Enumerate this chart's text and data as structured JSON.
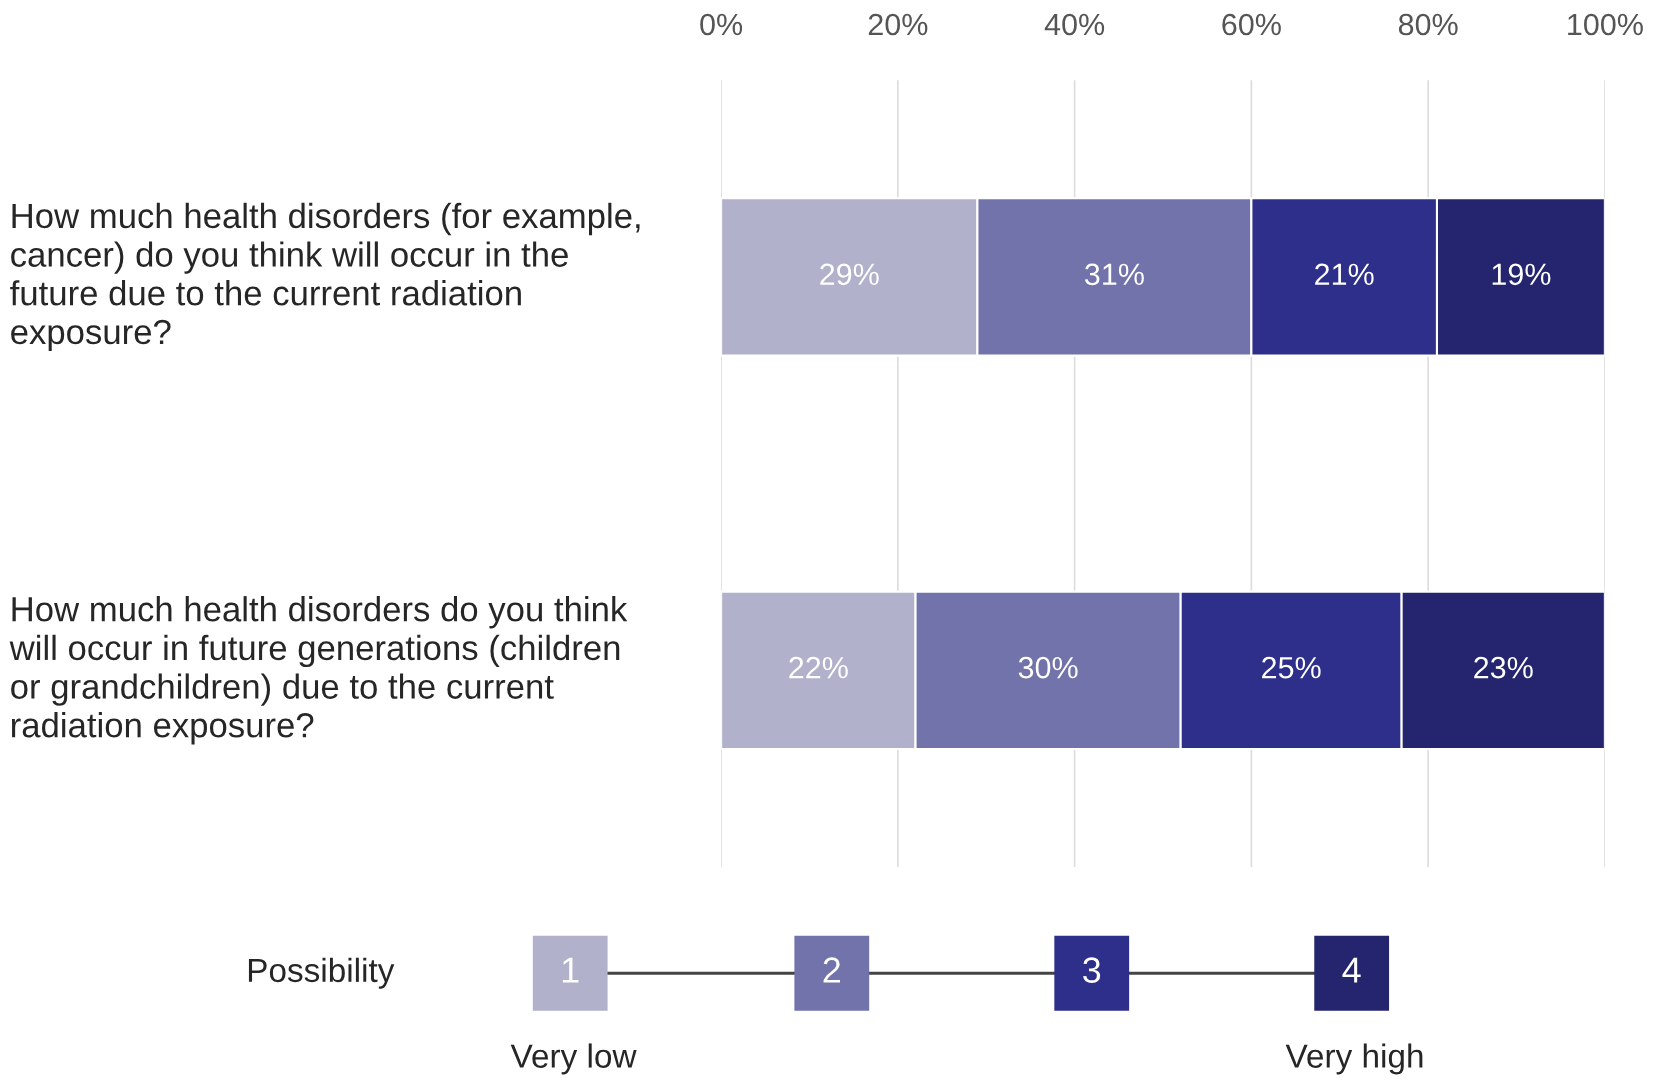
{
  "chart_data": {
    "type": "bar",
    "orientation": "horizontal",
    "stacked": true,
    "categories": [
      "How much health disorders (for example, cancer) do you think will occur in the future due to the current radiation exposure?",
      "How much health disorders do you think will occur in future generations (children or grandchildren) due to the current radiation exposure?"
    ],
    "series": [
      {
        "name": "1",
        "color": "#b1b1cc",
        "values": [
          29,
          22
        ],
        "value_labels": [
          "29%",
          "22%"
        ]
      },
      {
        "name": "2",
        "color": "#7373ab",
        "values": [
          31,
          30
        ],
        "value_labels": [
          "31%",
          "30%"
        ]
      },
      {
        "name": "3",
        "color": "#2e2e8b",
        "values": [
          21,
          25
        ],
        "value_labels": [
          "21%",
          "25%"
        ]
      },
      {
        "name": "4",
        "color": "#25256f",
        "values": [
          19,
          23
        ],
        "value_labels": [
          "19%",
          "23%"
        ]
      }
    ],
    "xlim": [
      0,
      100
    ],
    "xticks": [
      {
        "value": 0,
        "label": "0%"
      },
      {
        "value": 20,
        "label": "20%"
      },
      {
        "value": 40,
        "label": "40%"
      },
      {
        "value": 60,
        "label": "60%"
      },
      {
        "value": 80,
        "label": "80%"
      },
      {
        "value": 100,
        "label": "100%"
      }
    ],
    "grid": "x",
    "legend": "bottom",
    "legend_title": "Possibility",
    "annotations": [
      "Very low",
      "Very high"
    ]
  }
}
